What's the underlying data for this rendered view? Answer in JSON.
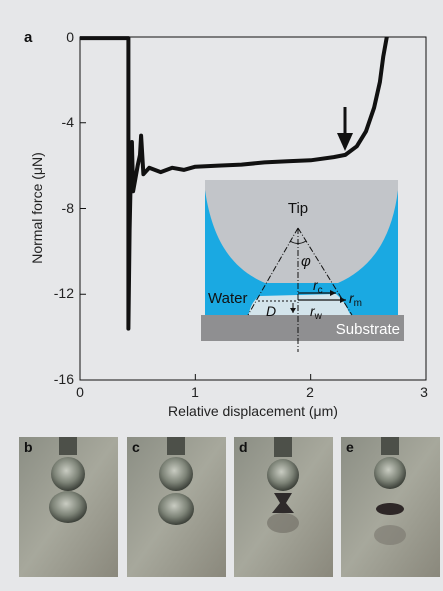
{
  "panel_a": {
    "letter": "a",
    "chart_data": {
      "type": "line",
      "xlabel": "Relative displacement (μm)",
      "ylabel": "Normal force (μN)",
      "xlim": [
        0,
        3
      ],
      "ylim": [
        -16,
        0
      ],
      "xticks": [
        "0",
        "1",
        "2",
        "3"
      ],
      "yticks": [
        "0",
        "-4",
        "-8",
        "-12",
        "-16"
      ],
      "series": [
        {
          "points": [
            [
              0.0,
              -0.05
            ],
            [
              0.1,
              -0.05
            ],
            [
              0.2,
              -0.05
            ],
            [
              0.3,
              -0.05
            ],
            [
              0.42,
              -0.05
            ],
            [
              0.42,
              -0.9
            ],
            [
              0.42,
              -13.6
            ],
            [
              0.43,
              -9.0
            ],
            [
              0.44,
              -6.6
            ],
            [
              0.45,
              -4.9
            ],
            [
              0.46,
              -7.2
            ],
            [
              0.48,
              -6.6
            ],
            [
              0.5,
              -6.0
            ],
            [
              0.52,
              -5.5
            ],
            [
              0.53,
              -4.6
            ],
            [
              0.55,
              -6.4
            ],
            [
              0.6,
              -6.1
            ],
            [
              0.7,
              -6.3
            ],
            [
              0.8,
              -6.1
            ],
            [
              0.9,
              -6.2
            ],
            [
              1.0,
              -6.05
            ],
            [
              1.2,
              -6.0
            ],
            [
              1.4,
              -5.95
            ],
            [
              1.6,
              -5.85
            ],
            [
              1.8,
              -5.8
            ],
            [
              2.0,
              -5.75
            ],
            [
              2.2,
              -5.6
            ],
            [
              2.3,
              -5.5
            ],
            [
              2.4,
              -5.1
            ],
            [
              2.48,
              -4.4
            ],
            [
              2.55,
              -3.3
            ],
            [
              2.6,
              -2.1
            ],
            [
              2.63,
              -0.9
            ],
            [
              2.66,
              0.0
            ]
          ]
        }
      ],
      "annotation": "arrow at x≈2.3"
    }
  },
  "inset": {
    "tip": "Tip",
    "phi": "φ",
    "rc": "r",
    "rc_sub": "c",
    "rm": "r",
    "rm_sub": "m",
    "rw": "r",
    "rw_sub": "w",
    "water": "Water",
    "D": "D",
    "substrate": "Substrate"
  },
  "photos": [
    {
      "letter": "b"
    },
    {
      "letter": "c"
    },
    {
      "letter": "d"
    },
    {
      "letter": "e"
    }
  ],
  "colors": {
    "background": "#e6e7e9",
    "water": "#1aa9e2",
    "tip": "#c2c5c9",
    "substrate": "#8f8f91",
    "curve": "#111111"
  }
}
